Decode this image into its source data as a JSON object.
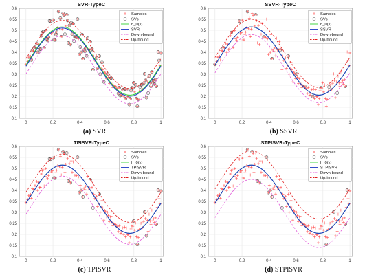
{
  "chart_data": [
    {
      "type": "line",
      "title": "SVR-TypeC",
      "xlim": [
        -0.05,
        1.02
      ],
      "ylim": [
        0.1,
        0.6
      ],
      "xticks": [
        "0",
        "0.2",
        "0.4",
        "0.6",
        "0.8",
        "1"
      ],
      "yticks": [
        "0.1",
        "0.15",
        "0.2",
        "0.25",
        "0.3",
        "0.35",
        "0.4",
        "0.45",
        "0.5",
        "0.55",
        "0.6"
      ],
      "grid": true,
      "legend_position": "top-right",
      "legend": [
        "Samples",
        "SVs",
        "h_0(x)",
        "SVR",
        "Down-bound",
        "Up-bound"
      ],
      "fit_label": "SVR",
      "svs_mode": "most",
      "band_width": 0.035,
      "fit_shift": -0.005,
      "caption_letter": "(a)",
      "caption_text": "SVR"
    },
    {
      "type": "line",
      "title": "SSVR-TypeC",
      "xlim": [
        -0.05,
        1.02
      ],
      "ylim": [
        0.1,
        0.6
      ],
      "xticks": [
        "0",
        "0.2",
        "0.4",
        "0.6",
        "0.8",
        "1"
      ],
      "yticks": [
        "0.1",
        "0.15",
        "0.2",
        "0.25",
        "0.3",
        "0.35",
        "0.4",
        "0.45",
        "0.5",
        "0.55",
        "0.6"
      ],
      "grid": true,
      "legend_position": "top-right",
      "legend": [
        "Samples",
        "SVs",
        "h_0(x)",
        "SSVR",
        "Down-bound",
        "Up-bound"
      ],
      "fit_label": "SSVR",
      "svs_mode": "few",
      "band_width": 0.035,
      "fit_shift": 0.0,
      "caption_letter": "(b)",
      "caption_text": "SSVR"
    },
    {
      "type": "line",
      "title": "TPISVR-TypeC",
      "xlim": [
        -0.05,
        1.02
      ],
      "ylim": [
        0.1,
        0.6
      ],
      "xticks": [
        "0",
        "0.2",
        "0.4",
        "0.6",
        "0.8",
        "1"
      ],
      "yticks": [
        "0.1",
        "0.15",
        "0.2",
        "0.25",
        "0.3",
        "0.35",
        "0.4",
        "0.45",
        "0.5",
        "0.55",
        "0.6"
      ],
      "grid": true,
      "legend_position": "top-right",
      "legend": [
        "Samples",
        "SVs",
        "h_0(x)",
        "TPISVR",
        "Down-bound",
        "Up-bound"
      ],
      "fit_label": "TPISVR",
      "svs_mode": "some",
      "band_width": 0.05,
      "fit_shift": 0.0,
      "caption_letter": "(c)",
      "caption_text": "TPISVR"
    },
    {
      "type": "line",
      "title": "STPISVR-TypeC",
      "xlim": [
        -0.05,
        1.02
      ],
      "ylim": [
        0.1,
        0.6
      ],
      "xticks": [
        "0",
        "0.2",
        "0.4",
        "0.6",
        "0.8",
        "1"
      ],
      "yticks": [
        "0.1",
        "0.15",
        "0.2",
        "0.25",
        "0.3",
        "0.35",
        "0.4",
        "0.45",
        "0.5",
        "0.55",
        "0.6"
      ],
      "grid": true,
      "legend_position": "top-right",
      "legend": [
        "Samples",
        "SVs",
        "h_0(x)",
        "STPISVR",
        "Down-bound",
        "Up-bound"
      ],
      "fit_label": "STPISVR",
      "svs_mode": "some",
      "band_width": 0.065,
      "fit_shift": 0.0,
      "caption_letter": "(d)",
      "caption_text": "STPISVR"
    }
  ],
  "colors": {
    "samples": "#ff4d4d",
    "svs": "#555555",
    "h0": "#2fd12f",
    "fit": "#1f3cc4",
    "down": "#e05ad8",
    "up": "#e02020",
    "grid": "#e6e6e6",
    "axis": "#444444"
  }
}
